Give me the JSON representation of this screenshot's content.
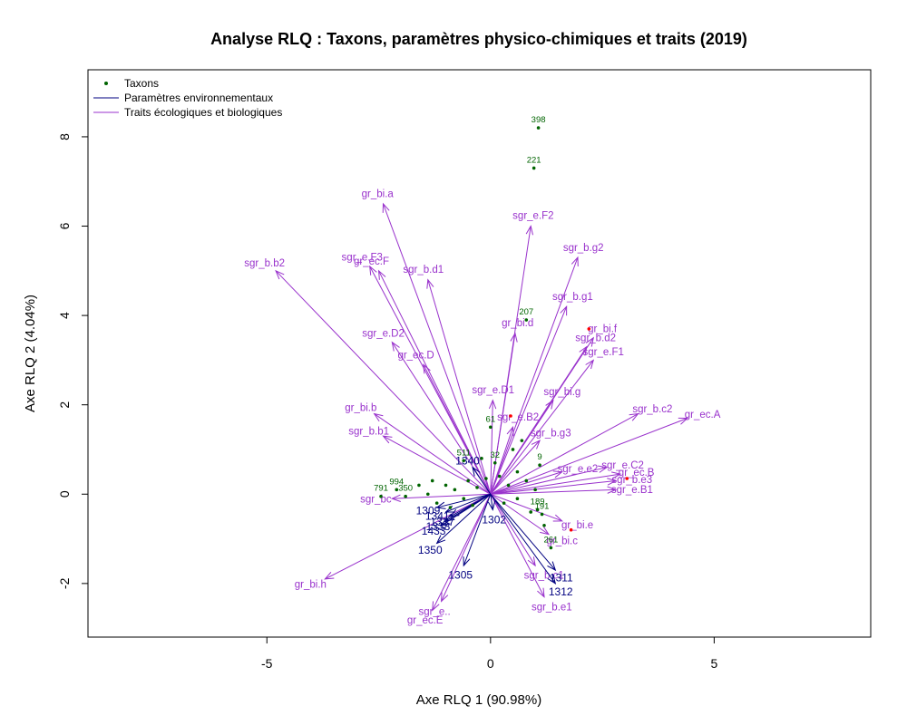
{
  "colors": {
    "taxa": "#006400",
    "env": "#000080",
    "traits": "#9932CC",
    "highlight": "#FF0000",
    "axes": "#000000"
  },
  "chart_data": {
    "type": "scatter",
    "title": "Analyse RLQ : Taxons, paramètres physico-chimiques et traits (2019)",
    "xlabel": "Axe RLQ 1 (90.98%)",
    "ylabel": "Axe RLQ 2 (4.04%)",
    "xlim": [
      -9,
      8.5
    ],
    "ylim": [
      -3.2,
      9.5
    ],
    "xticks": [
      -5,
      0,
      5
    ],
    "yticks": [
      -2,
      0,
      2,
      4,
      6,
      8
    ],
    "grid": false,
    "legend_position": "top-left",
    "legend": [
      {
        "label": "Taxons",
        "kind": "point",
        "color": "#006400"
      },
      {
        "label": "Paramètres environnementaux",
        "kind": "line",
        "color": "#000080"
      },
      {
        "label": "Traits écologiques et biologiques",
        "kind": "line",
        "color": "#9932CC"
      }
    ],
    "traits": [
      {
        "label": "gr_bi.a",
        "x": -2.4,
        "y": 6.5
      },
      {
        "label": "sgr_b.b2",
        "x": -4.8,
        "y": 5.0
      },
      {
        "label": "sgr_e.F3",
        "x": -2.7,
        "y": 5.1
      },
      {
        "label": "gr_ec.F",
        "x": -2.5,
        "y": 5.0
      },
      {
        "label": "sgr_e.F2",
        "x": 0.9,
        "y": 6.0
      },
      {
        "label": "sgr_b.g2",
        "x": 1.95,
        "y": 5.3
      },
      {
        "label": "sgr_b.g1",
        "x": 1.7,
        "y": 4.2
      },
      {
        "label": "sgr_b.d1",
        "x": -1.4,
        "y": 4.8
      },
      {
        "label": "sgr_e.D2",
        "x": -2.2,
        "y": 3.4
      },
      {
        "label": "gr_ec.D",
        "x": -1.5,
        "y": 2.9
      },
      {
        "label": "gr_bi.d",
        "x": 0.55,
        "y": 3.6
      },
      {
        "label": "gr_bi.f",
        "x": 2.3,
        "y": 3.5
      },
      {
        "label": "sgr_b.d2",
        "x": 2.15,
        "y": 3.3
      },
      {
        "label": "sgr_e.F1",
        "x": 2.3,
        "y": 3.0
      },
      {
        "label": "sgr_bi.g",
        "x": 1.4,
        "y": 2.1
      },
      {
        "label": "sgr_e.D1",
        "x": 0.05,
        "y": 2.1
      },
      {
        "label": "sgr_e.B2",
        "x": 0.5,
        "y": 1.5
      },
      {
        "label": "gr_bi.b",
        "x": -2.6,
        "y": 1.8
      },
      {
        "label": "sgr_b.b1",
        "x": -2.4,
        "y": 1.3
      },
      {
        "label": "sgr_b.c2",
        "x": 3.3,
        "y": 1.8
      },
      {
        "label": "gr_ec.A",
        "x": 4.4,
        "y": 1.7
      },
      {
        "label": "sgr_b.g3",
        "x": 1.1,
        "y": 1.2
      },
      {
        "label": "sgr_e.C2",
        "x": 2.6,
        "y": 0.6
      },
      {
        "label": "gr_ec.B",
        "x": 2.9,
        "y": 0.45
      },
      {
        "label": "sgr_e.e2",
        "x": 1.6,
        "y": 0.5
      },
      {
        "label": "sgr_b.e3",
        "x": 2.8,
        "y": 0.3
      },
      {
        "label": "sgr_e.B1",
        "x": 2.8,
        "y": 0.1
      },
      {
        "label": "gr_bi.e",
        "x": 1.6,
        "y": -0.6
      },
      {
        "label": "gr_bi.c",
        "x": 1.3,
        "y": -0.9
      },
      {
        "label": "sgr_b.c1",
        "x": 1.0,
        "y": -1.6
      },
      {
        "label": "sgr_b.e1",
        "x": 1.2,
        "y": -2.3
      },
      {
        "label": "gr_bi.h",
        "x": -3.7,
        "y": -1.9
      },
      {
        "label": "sgr_e..",
        "x": -1.1,
        "y": -2.4
      },
      {
        "label": "gr_ec.E",
        "x": -1.3,
        "y": -2.6
      },
      {
        "label": "sgr_bc",
        "x": -2.2,
        "y": -0.1
      }
    ],
    "env": [
      {
        "label": "1340",
        "x": -0.4,
        "y": 0.6
      },
      {
        "label": "1309",
        "x": -1.2,
        "y": -0.3
      },
      {
        "label": "1337",
        "x": -0.9,
        "y": -0.5
      },
      {
        "label": "1338",
        "x": -1.0,
        "y": -0.6
      },
      {
        "label": "1433",
        "x": -1.1,
        "y": -0.7
      },
      {
        "label": "1350",
        "x": -1.2,
        "y": -1.1
      },
      {
        "label": "1305",
        "x": -0.6,
        "y": -1.6
      },
      {
        "label": "1302",
        "x": 0.05,
        "y": -0.35
      },
      {
        "label": "1311",
        "x": 1.45,
        "y": -1.7
      },
      {
        "label": "1312",
        "x": 1.45,
        "y": -2.0
      },
      {
        "label": "1341",
        "x": -1.0,
        "y": -0.4
      }
    ],
    "taxa": [
      {
        "label": "398",
        "x": 1.07,
        "y": 8.2
      },
      {
        "label": "221",
        "x": 0.97,
        "y": 7.3
      },
      {
        "label": "207",
        "x": 0.8,
        "y": 3.9
      },
      {
        "label": "61",
        "x": 0.0,
        "y": 1.5
      },
      {
        "label": "791",
        "x": -2.45,
        "y": -0.05
      },
      {
        "label": "994",
        "x": -2.1,
        "y": 0.1
      },
      {
        "label": "350",
        "x": -1.9,
        "y": -0.05
      },
      {
        "label": "511",
        "x": -0.6,
        "y": 0.75
      },
      {
        "label": "32",
        "x": 0.1,
        "y": 0.7
      },
      {
        "label": "189",
        "x": 1.05,
        "y": -0.35
      },
      {
        "label": "191",
        "x": 1.15,
        "y": -0.45
      },
      {
        "label": "261",
        "x": 1.35,
        "y": -1.2
      },
      {
        "label": "9",
        "x": 1.1,
        "y": 0.65
      },
      {
        "label": "",
        "x": -1.6,
        "y": 0.2
      },
      {
        "label": "",
        "x": -1.3,
        "y": 0.3
      },
      {
        "label": "",
        "x": -1.0,
        "y": 0.2
      },
      {
        "label": "",
        "x": -0.8,
        "y": 0.1
      },
      {
        "label": "",
        "x": -0.5,
        "y": 0.3
      },
      {
        "label": "",
        "x": -0.3,
        "y": 0.15
      },
      {
        "label": "",
        "x": -0.1,
        "y": 0.35
      },
      {
        "label": "",
        "x": 0.2,
        "y": 0.4
      },
      {
        "label": "",
        "x": 0.4,
        "y": 0.2
      },
      {
        "label": "",
        "x": 0.6,
        "y": 0.5
      },
      {
        "label": "",
        "x": 0.8,
        "y": 0.3
      },
      {
        "label": "",
        "x": 1.0,
        "y": 0.1
      },
      {
        "label": "",
        "x": -1.2,
        "y": -0.2
      },
      {
        "label": "",
        "x": -0.9,
        "y": -0.3
      },
      {
        "label": "",
        "x": -0.6,
        "y": -0.1
      },
      {
        "label": "",
        "x": -0.4,
        "y": -0.25
      },
      {
        "label": "",
        "x": 0.3,
        "y": -0.2
      },
      {
        "label": "",
        "x": 0.6,
        "y": -0.1
      },
      {
        "label": "",
        "x": 0.9,
        "y": -0.4
      },
      {
        "label": "",
        "x": 0.5,
        "y": 1.0
      },
      {
        "label": "",
        "x": 0.7,
        "y": 1.2
      },
      {
        "label": "",
        "x": -0.2,
        "y": 0.8
      },
      {
        "label": "",
        "x": -1.4,
        "y": 0.0
      },
      {
        "label": "",
        "x": 1.2,
        "y": -0.7
      }
    ],
    "highlighted": [
      {
        "x": 2.2,
        "y": 3.7
      },
      {
        "x": 3.05,
        "y": 0.35
      },
      {
        "x": 1.8,
        "y": -0.8
      },
      {
        "x": 0.45,
        "y": 1.75
      }
    ]
  }
}
